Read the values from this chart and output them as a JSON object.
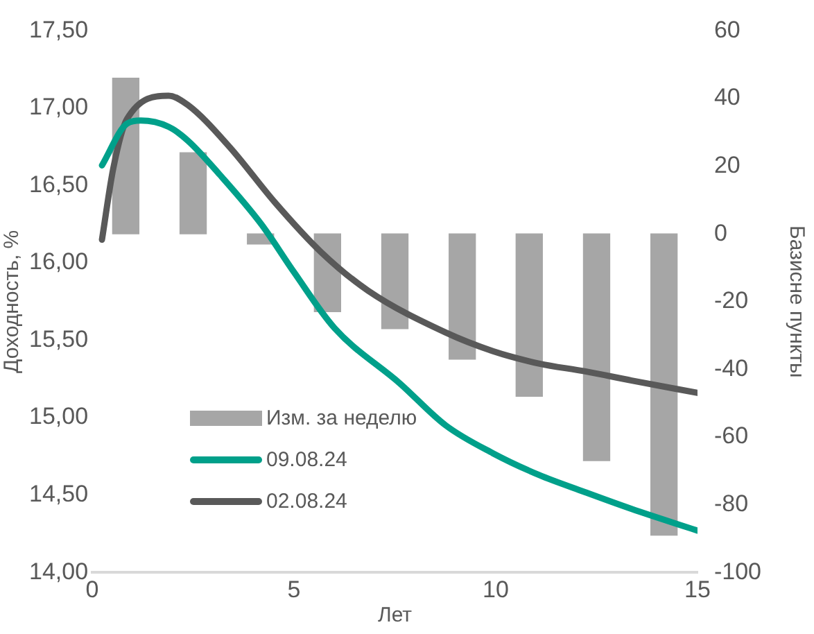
{
  "chart_data": {
    "type": "line",
    "xlabel": "Лет",
    "ylabel": "Доходность, %",
    "y2label": "Базисне пункты",
    "xlim": [
      0,
      15
    ],
    "xticks": [
      0,
      5,
      10,
      15
    ],
    "ylim": [
      14,
      17.5
    ],
    "yticks": [
      {
        "value": 14,
        "label": "14,00"
      },
      {
        "value": 14.5,
        "label": "14,50"
      },
      {
        "value": 15,
        "label": "15,00"
      },
      {
        "value": 15.5,
        "label": "15,50"
      },
      {
        "value": 16,
        "label": "16,00"
      },
      {
        "value": 16.5,
        "label": "16,50"
      },
      {
        "value": 17,
        "label": "17,00"
      },
      {
        "value": 17.5,
        "label": "17,50"
      }
    ],
    "y2lim": [
      -100,
      60
    ],
    "y2ticks": [
      -100,
      -80,
      -60,
      -40,
      -20,
      0,
      20,
      40,
      60
    ],
    "grid": false,
    "legend": "bottom left",
    "marker": "none",
    "line_style": "solid",
    "series": [
      {
        "name": "Изм. за неделю",
        "type": "bar",
        "axis": "y2",
        "color": "#a6a6a6",
        "x": [
          0.83,
          2.5,
          4.17,
          5.83,
          7.5,
          9.17,
          10.83,
          12.5,
          14.17
        ],
        "values": [
          46,
          24,
          -3,
          -23,
          -28,
          -37,
          -48,
          -67,
          -89
        ]
      },
      {
        "name": "09.08.24",
        "color": "#00a08a",
        "x": [
          0.24,
          0.86,
          1.2,
          1.89,
          2.37,
          3.16,
          4.19,
          5,
          6,
          7.63,
          8.76,
          9.93,
          11.07,
          12.2,
          13.37,
          15
        ],
        "values": [
          16.63,
          16.9,
          16.92,
          16.88,
          16.79,
          16.57,
          16.25,
          15.94,
          15.58,
          15.22,
          14.95,
          14.77,
          14.63,
          14.52,
          14.41,
          14.27
        ]
      },
      {
        "name": "02.08.24",
        "color": "#595959",
        "x": [
          0.24,
          0.52,
          0.86,
          1.89,
          2.37,
          3.4,
          4.53,
          5.67,
          6.84,
          8.76,
          9.93,
          11.07,
          12.2,
          13.37,
          15
        ],
        "values": [
          16.15,
          16.61,
          16.93,
          17.08,
          17.02,
          16.75,
          16.39,
          16.07,
          15.82,
          15.55,
          15.43,
          15.35,
          15.3,
          15.24,
          15.16
        ]
      }
    ]
  }
}
